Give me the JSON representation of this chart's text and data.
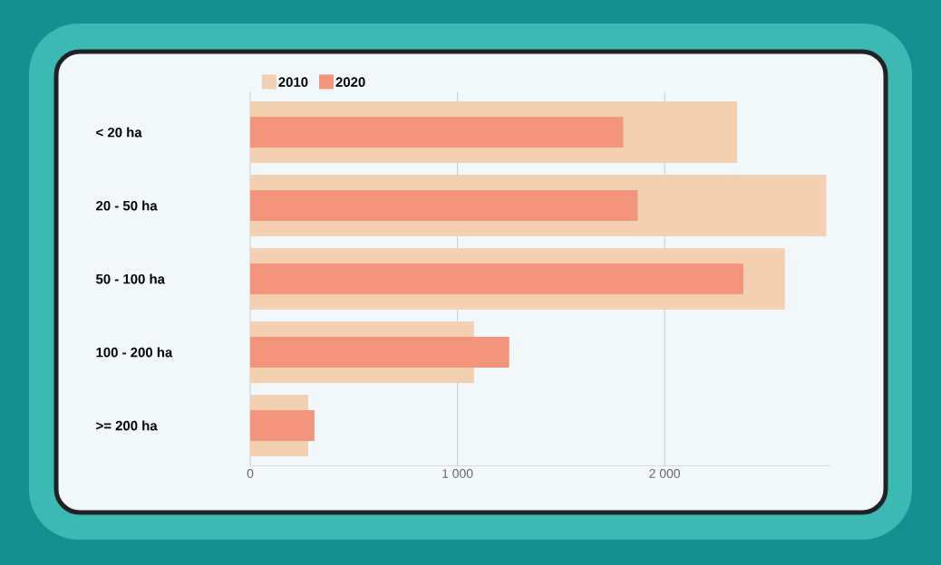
{
  "chart_data": {
    "type": "bar",
    "orientation": "horizontal",
    "categories": [
      "< 20 ha",
      "20 - 50 ha",
      "50 - 100 ha",
      "100 - 200 ha",
      ">= 200 ha"
    ],
    "series": [
      {
        "name": "2010",
        "color": "#f4d0b2",
        "values": [
          2350,
          2780,
          2580,
          1080,
          280
        ]
      },
      {
        "name": "2020",
        "color": "#f2957c",
        "values": [
          1800,
          1870,
          2380,
          1250,
          310
        ]
      }
    ],
    "xlim": [
      0,
      2800
    ],
    "xticks": [
      0,
      {
        "value": 1000,
        "label": "1 000"
      },
      {
        "value": 2000,
        "label": "2 000"
      }
    ],
    "grid": "x",
    "legend": "top"
  }
}
